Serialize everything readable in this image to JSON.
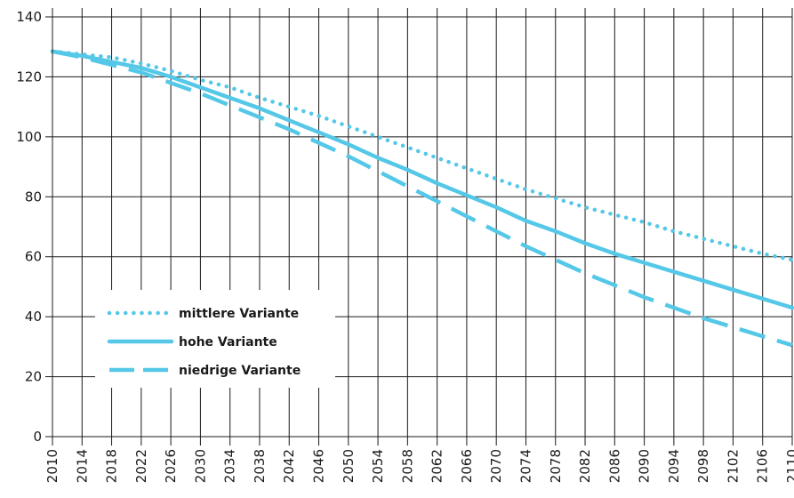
{
  "chart_data": {
    "type": "line",
    "title": "",
    "xlabel": "",
    "ylabel": "",
    "xlim": [
      2010,
      2110
    ],
    "ylim": [
      0,
      140
    ],
    "grid": true,
    "legend_position": "left",
    "x_ticks": [
      "2010",
      "2014",
      "2018",
      "2022",
      "2026",
      "2030",
      "2034",
      "2038",
      "2042",
      "2046",
      "2050",
      "2054",
      "2058",
      "2062",
      "2066",
      "2070",
      "2074",
      "2078",
      "2082",
      "2086",
      "2090",
      "2094",
      "2098",
      "2102",
      "2106",
      "2110"
    ],
    "y_ticks": [
      "0",
      "20",
      "40",
      "60",
      "80",
      "100",
      "120",
      "140"
    ],
    "series": [
      {
        "name": "mittlere Variante",
        "style": "dotted",
        "color": "#55C8E8",
        "x": [
          2010,
          2014,
          2018,
          2022,
          2026,
          2030,
          2034,
          2038,
          2042,
          2046,
          2050,
          2054,
          2058,
          2062,
          2066,
          2070,
          2074,
          2078,
          2082,
          2086,
          2090,
          2094,
          2098,
          2102,
          2106,
          2110
        ],
        "y": [
          128.5,
          127.5,
          126.5,
          124.5,
          122,
          119,
          116.5,
          113,
          110,
          107,
          103.5,
          100,
          96.5,
          93,
          89.5,
          86,
          82.5,
          79.5,
          76.5,
          74,
          71.5,
          68.5,
          66,
          63.5,
          61,
          59
        ]
      },
      {
        "name": "hohe Variante",
        "style": "solid",
        "color": "#55C8E8",
        "x": [
          2010,
          2014,
          2018,
          2022,
          2026,
          2030,
          2034,
          2038,
          2042,
          2046,
          2050,
          2054,
          2058,
          2062,
          2066,
          2070,
          2074,
          2078,
          2082,
          2086,
          2090,
          2094,
          2098,
          2102,
          2106,
          2110
        ],
        "y": [
          128.5,
          127,
          125,
          123,
          120,
          116.5,
          113,
          109.5,
          105.5,
          101.5,
          97.5,
          93,
          89,
          84.5,
          80.5,
          76.5,
          72,
          68.5,
          64.5,
          61,
          58,
          55,
          52,
          49,
          46,
          43
        ]
      },
      {
        "name": "niedrige Variante",
        "style": "dashed",
        "color": "#55C8E8",
        "x": [
          2010,
          2014,
          2018,
          2022,
          2026,
          2030,
          2034,
          2038,
          2042,
          2046,
          2050,
          2054,
          2058,
          2062,
          2066,
          2070,
          2074,
          2078,
          2082,
          2086,
          2090,
          2094,
          2098,
          2102,
          2106,
          2110
        ],
        "y": [
          128.5,
          126.5,
          124,
          121.5,
          118,
          114.5,
          110.5,
          106.5,
          102.5,
          98,
          93.5,
          88.5,
          83.5,
          78.5,
          73.5,
          68.5,
          63.5,
          59,
          54.5,
          50.5,
          46.5,
          43,
          39.5,
          36.5,
          33.5,
          30.5
        ]
      }
    ]
  }
}
